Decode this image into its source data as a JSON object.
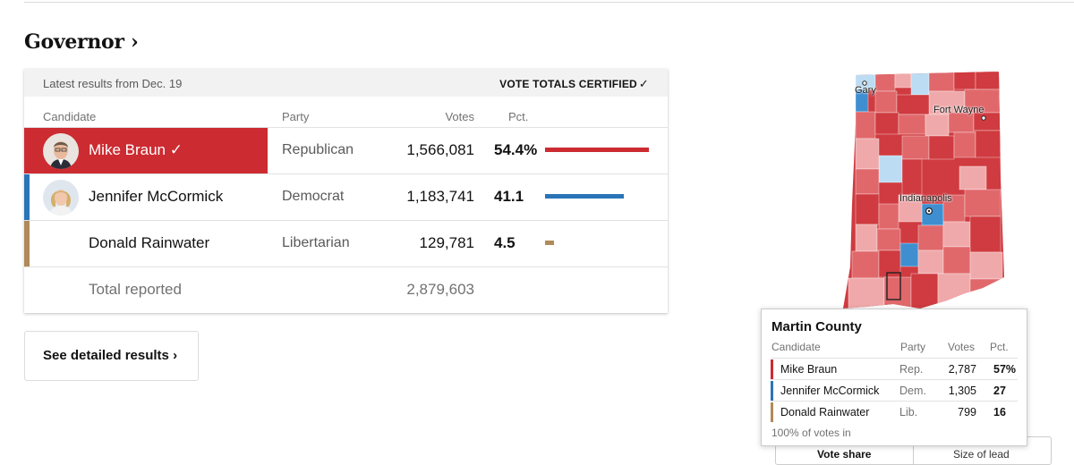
{
  "race": {
    "title": "Governor ›"
  },
  "results": {
    "latest": "Latest results from Dec. 19",
    "certified_label": "VOTE TOTALS CERTIFIED",
    "certified_icon": "check-icon",
    "columns": {
      "candidate": "Candidate",
      "party": "Party",
      "votes": "Votes",
      "pct": "Pct."
    },
    "candidates": [
      {
        "name": "Mike Braun",
        "winner_icon": "✓",
        "party": "Republican",
        "votes": "1,566,081",
        "pct": "54.4%",
        "share": 0.544,
        "color": "#cc2b31"
      },
      {
        "name": "Jennifer McCormick",
        "party": "Democrat",
        "votes": "1,183,741",
        "pct": "41.1",
        "share": 0.411,
        "color": "#2a74b8"
      },
      {
        "name": "Donald Rainwater",
        "party": "Libertarian",
        "votes": "129,781",
        "pct": "4.5",
        "share": 0.045,
        "color": "#b08a5a"
      }
    ],
    "total": {
      "label": "Total reported",
      "votes": "2,879,603"
    }
  },
  "detail_button": {
    "label": "See detailed results ›"
  },
  "map": {
    "labels": {
      "gary": "Gary",
      "fort_wayne": "Fort Wayne",
      "indianapolis": "Indianapolis"
    },
    "colors": {
      "rep_strong": "#cf3b40",
      "rep_mid": "#e0686b",
      "rep_light": "#f0a9aa",
      "dem_mid": "#3f8fd0",
      "dem_light": "#bcdcf3"
    }
  },
  "tooltip": {
    "county": "Martin County",
    "columns": {
      "candidate": "Candidate",
      "party": "Party",
      "votes": "Votes",
      "pct": "Pct."
    },
    "rows": [
      {
        "name": "Mike Braun",
        "party": "Rep.",
        "votes": "2,787",
        "pct": "57%",
        "color": "#cc2b31"
      },
      {
        "name": "Jennifer McCormick",
        "party": "Dem.",
        "votes": "1,305",
        "pct": "27",
        "color": "#2a74b8"
      },
      {
        "name": "Donald Rainwater",
        "party": "Lib.",
        "votes": "799",
        "pct": "16",
        "color": "#b08a5a"
      }
    ],
    "footer": "100% of votes in"
  },
  "map_toggle": {
    "vote_share": "Vote share",
    "size_of_lead": "Size of lead"
  }
}
